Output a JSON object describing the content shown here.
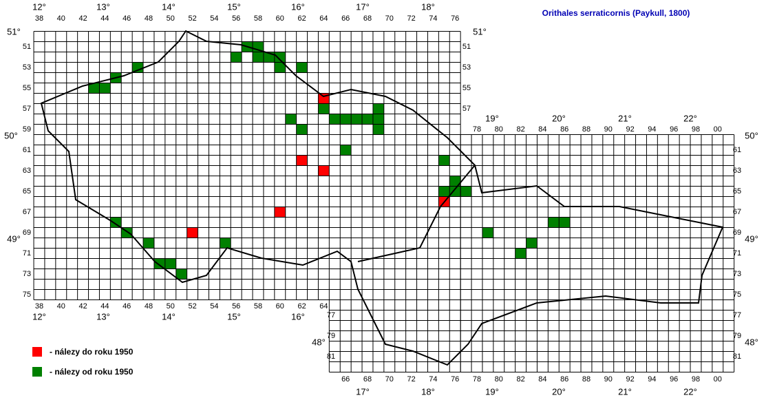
{
  "title": "Orithales serraticornis (Paykull, 1800)",
  "legend": [
    "- nálezy do roku 1950",
    "- nálezy od roku 1950"
  ],
  "top_degrees": [
    "12°",
    "13°",
    "14°",
    "15°",
    "16°",
    "17°",
    "18°"
  ],
  "slovak_top_degrees": [
    "19°",
    "20°",
    "21°",
    "22°"
  ],
  "czech_bottom_degrees": [
    "12°",
    "13°",
    "14°",
    "15°",
    "16°"
  ],
  "slovak_bottom_degrees": [
    "17°",
    "18°",
    "19°",
    "20°",
    "21°",
    "22°"
  ],
  "left_degrees": [
    "51°",
    "50°",
    "49°"
  ],
  "right_degrees": [
    "51°",
    "50°",
    "49°",
    "48°"
  ],
  "left_48": "48°",
  "czech_top_columns": [
    "38",
    "40",
    "42",
    "44",
    "46",
    "48",
    "50",
    "52",
    "54",
    "56",
    "58",
    "60",
    "62",
    "64",
    "66",
    "68",
    "70",
    "72",
    "74",
    "76"
  ],
  "czech_bottom_columns": [
    "38",
    "40",
    "42",
    "44",
    "46",
    "48",
    "50",
    "52",
    "54",
    "56",
    "58",
    "60",
    "62",
    "64"
  ],
  "slovak_top_columns": [
    "78",
    "80",
    "82",
    "84",
    "86",
    "88",
    "90",
    "92",
    "94",
    "96",
    "98",
    "00"
  ],
  "slovak_bottom_columns": [
    "66",
    "68",
    "70",
    "72",
    "74",
    "76",
    "78",
    "80",
    "82",
    "84",
    "86",
    "88",
    "90",
    "92",
    "94",
    "96",
    "98",
    "00"
  ],
  "czech_left_rows": [
    "51",
    "53",
    "55",
    "57",
    "59",
    "61",
    "63",
    "65",
    "67",
    "69",
    "71",
    "73",
    "75"
  ],
  "czech_right_rows": [
    "51",
    "53",
    "55",
    "57"
  ],
  "slovak_right_rows": [
    "61",
    "63",
    "65",
    "67",
    "69",
    "71",
    "73",
    "75",
    "77",
    "79",
    "81"
  ],
  "slovak_left_rows": [
    "77",
    "79",
    "81"
  ],
  "records": {
    "before_1950": [
      [
        64,
        56
      ],
      [
        62,
        62
      ],
      [
        64,
        63
      ],
      [
        60,
        67
      ],
      [
        52,
        69
      ],
      [
        75,
        66
      ]
    ],
    "since_1950": [
      [
        57,
        51
      ],
      [
        58,
        51
      ],
      [
        56,
        52
      ],
      [
        58,
        52
      ],
      [
        59,
        52
      ],
      [
        60,
        52
      ],
      [
        47,
        53
      ],
      [
        60,
        53
      ],
      [
        62,
        53
      ],
      [
        45,
        54
      ],
      [
        43,
        55
      ],
      [
        44,
        55
      ],
      [
        64,
        57
      ],
      [
        69,
        57
      ],
      [
        61,
        58
      ],
      [
        65,
        58
      ],
      [
        66,
        58
      ],
      [
        67,
        58
      ],
      [
        68,
        58
      ],
      [
        69,
        58
      ],
      [
        62,
        59
      ],
      [
        69,
        59
      ],
      [
        66,
        61
      ],
      [
        75,
        62
      ],
      [
        76,
        64
      ],
      [
        75,
        65
      ],
      [
        76,
        65
      ],
      [
        77,
        65
      ],
      [
        85,
        68
      ],
      [
        86,
        68
      ],
      [
        45,
        68
      ],
      [
        46,
        69
      ],
      [
        79,
        69
      ],
      [
        48,
        70
      ],
      [
        55,
        70
      ],
      [
        83,
        70
      ],
      [
        82,
        71
      ],
      [
        49,
        72
      ],
      [
        50,
        72
      ],
      [
        51,
        73
      ]
    ]
  }
}
